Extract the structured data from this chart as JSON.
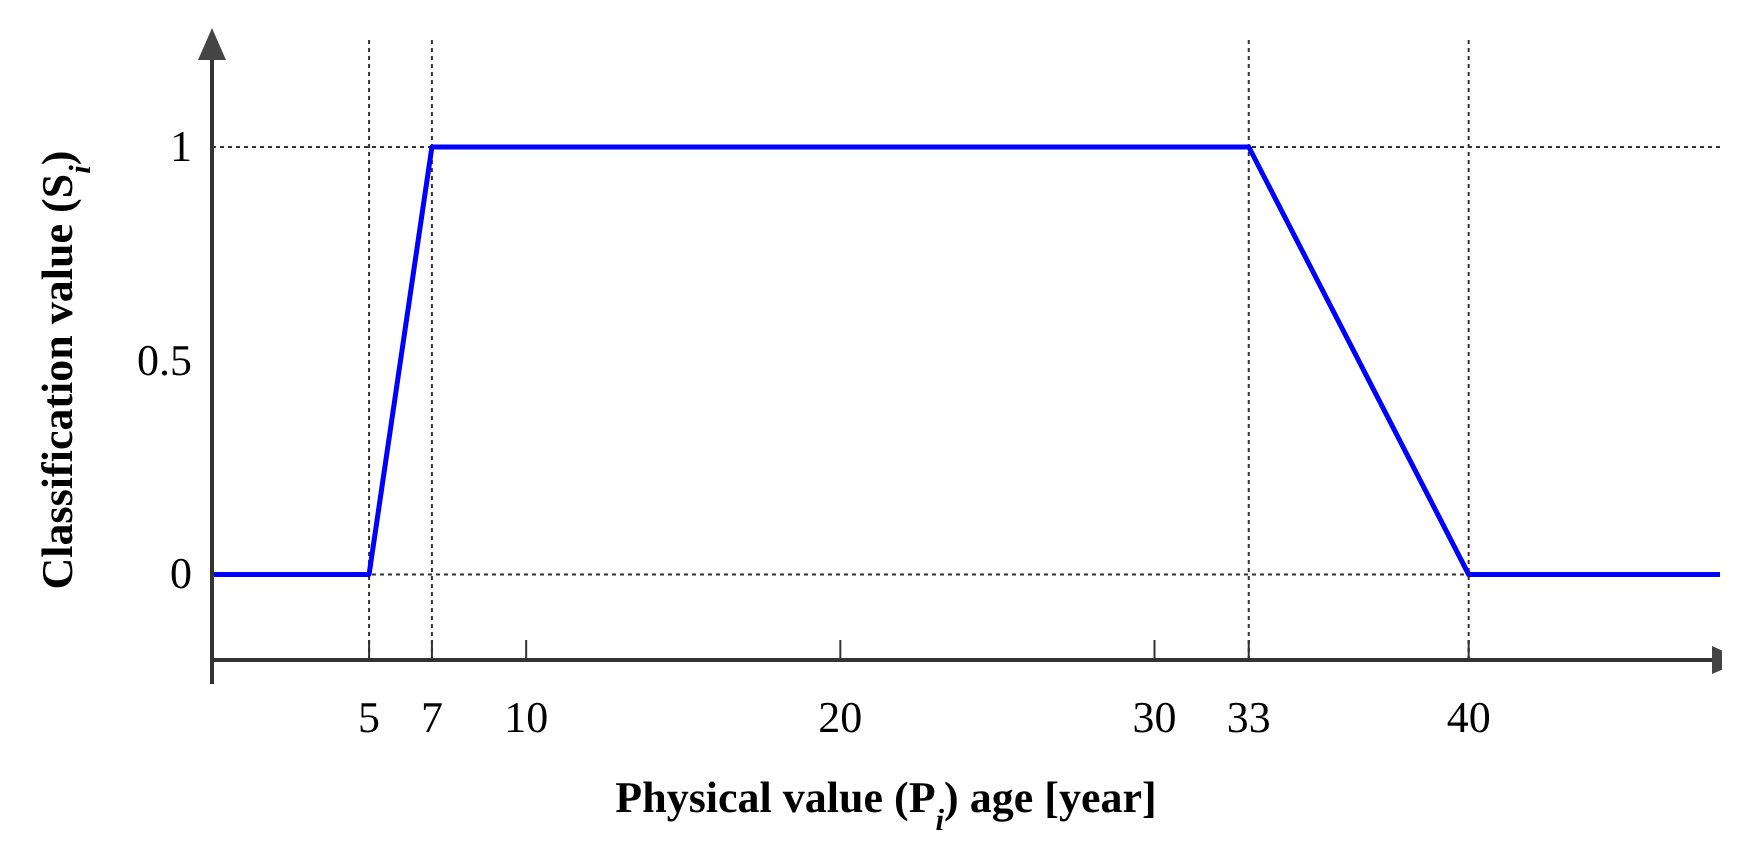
{
  "chart_data": {
    "type": "line",
    "xlabel": "Physical value (P$_{i}$) age  [year]",
    "ylabel": "Classification value (S$_{i}$)",
    "x": [
      0,
      5,
      7,
      33,
      40,
      48
    ],
    "series": [
      {
        "color": "#0000ff",
        "values": [
          0,
          0,
          1,
          1,
          0,
          0
        ]
      }
    ],
    "xlim": [
      0,
      48
    ],
    "ylim": [
      -0.2,
      1.25
    ],
    "xticks": [
      5,
      7,
      10,
      20,
      30,
      33,
      40
    ],
    "yticks": [
      0,
      0.5,
      1
    ],
    "ref_lines": [
      {
        "axis": "x",
        "value": 5,
        "color": "#333333",
        "line_style": "dotted"
      },
      {
        "axis": "x",
        "value": 7,
        "color": "#333333",
        "line_style": "dotted"
      },
      {
        "axis": "x",
        "value": 33,
        "color": "#333333",
        "line_style": "dotted"
      },
      {
        "axis": "x",
        "value": 40,
        "color": "#333333",
        "line_style": "dotted"
      },
      {
        "axis": "y",
        "value": 0,
        "color": "#333333",
        "line_style": "dotted"
      },
      {
        "axis": "y",
        "value": 1,
        "color": "#333333",
        "line_style": "dotted"
      }
    ],
    "grid": false,
    "marker": "none",
    "line_style": "solid"
  }
}
